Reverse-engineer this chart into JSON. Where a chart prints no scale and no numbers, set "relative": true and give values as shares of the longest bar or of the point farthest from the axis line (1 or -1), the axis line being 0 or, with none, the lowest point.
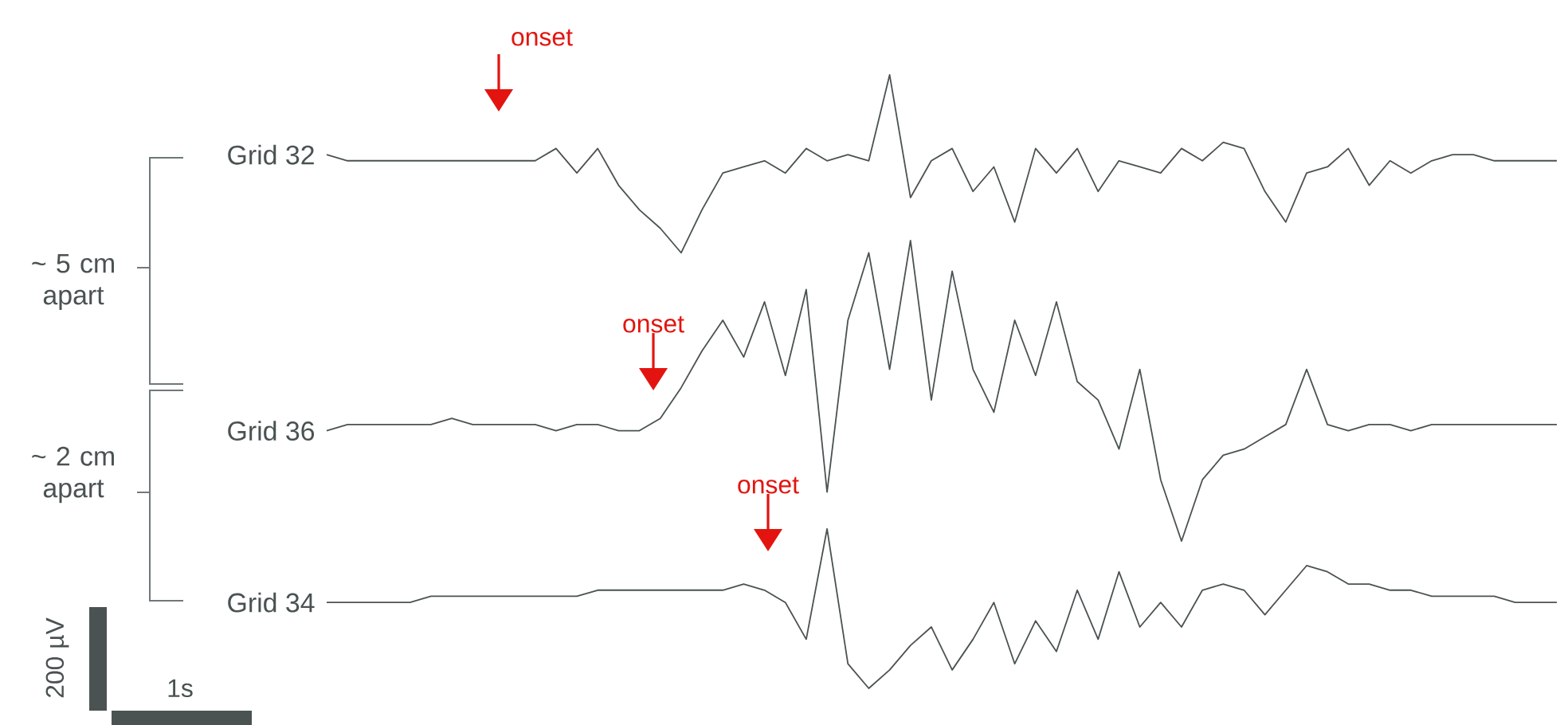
{
  "chart_data": {
    "type": "line",
    "relative": true,
    "categories": [
      null,
      null,
      null,
      null,
      null,
      null,
      null,
      null,
      null,
      null,
      null,
      null,
      null,
      null,
      null,
      null,
      null,
      null,
      null,
      null,
      null,
      null,
      null,
      null,
      null,
      null,
      null,
      null,
      null,
      null,
      null,
      null,
      null,
      null,
      null,
      null,
      null,
      null,
      null,
      null,
      null,
      null,
      null,
      null,
      null,
      null,
      null,
      null,
      null,
      null,
      null,
      null,
      null,
      null,
      null,
      null,
      null,
      null,
      null,
      null
    ],
    "series": [
      {
        "name": "Grid 32",
        "color": "#4a5252",
        "values": [
          0.87,
          0.86,
          0.86,
          0.86,
          0.86,
          0.86,
          0.86,
          0.86,
          0.86,
          0.86,
          0.86,
          0.88,
          0.84,
          0.88,
          0.82,
          0.78,
          0.75,
          0.71,
          0.78,
          0.84,
          0.85,
          0.86,
          0.84,
          0.88,
          0.86,
          0.87,
          0.86,
          1.0,
          0.8,
          0.86,
          0.88,
          0.81,
          0.85,
          0.76,
          0.88,
          0.84,
          0.88,
          0.81,
          0.86,
          0.85,
          0.84,
          0.88,
          0.86,
          0.89,
          0.88,
          0.81,
          0.76,
          0.84,
          0.85,
          0.88,
          0.82,
          0.86,
          0.84,
          0.86,
          0.87,
          0.87,
          0.86,
          0.86,
          0.86,
          0.86
        ]
      },
      {
        "name": "Grid 36",
        "color": "#4a5252",
        "values": [
          0.42,
          0.43,
          0.43,
          0.43,
          0.43,
          0.43,
          0.44,
          0.43,
          0.43,
          0.43,
          0.43,
          0.42,
          0.43,
          0.43,
          0.42,
          0.42,
          0.44,
          0.49,
          0.55,
          0.6,
          0.54,
          0.63,
          0.51,
          0.65,
          0.32,
          0.6,
          0.71,
          0.52,
          0.73,
          0.47,
          0.68,
          0.52,
          0.45,
          0.6,
          0.51,
          0.63,
          0.5,
          0.47,
          0.39,
          0.52,
          0.34,
          0.24,
          0.34,
          0.38,
          0.39,
          0.41,
          0.43,
          0.52,
          0.43,
          0.42,
          0.43,
          0.43,
          0.42,
          0.43,
          0.43,
          0.43,
          0.43,
          0.43,
          0.43,
          0.43
        ]
      },
      {
        "name": "Grid 34",
        "color": "#4a5252",
        "values": [
          0.14,
          0.14,
          0.14,
          0.14,
          0.14,
          0.15,
          0.15,
          0.15,
          0.15,
          0.15,
          0.15,
          0.15,
          0.15,
          0.16,
          0.16,
          0.16,
          0.16,
          0.16,
          0.16,
          0.16,
          0.17,
          0.16,
          0.14,
          0.08,
          0.26,
          0.04,
          0,
          0.03,
          0.07,
          0.1,
          0.03,
          0.08,
          0.14,
          0.04,
          0.11,
          0.06,
          0.16,
          0.08,
          0.19,
          0.1,
          0.14,
          0.1,
          0.16,
          0.17,
          0.16,
          0.12,
          0.16,
          0.2,
          0.19,
          0.17,
          0.17,
          0.16,
          0.16,
          0.15,
          0.15,
          0.15,
          0.15,
          0.14,
          0.14,
          0.14
        ]
      }
    ],
    "annotations": [
      "onset",
      "onset",
      "onset",
      "~ 5 cm apart",
      "~ 2 cm apart",
      "200 µV",
      "1s"
    ]
  }
}
